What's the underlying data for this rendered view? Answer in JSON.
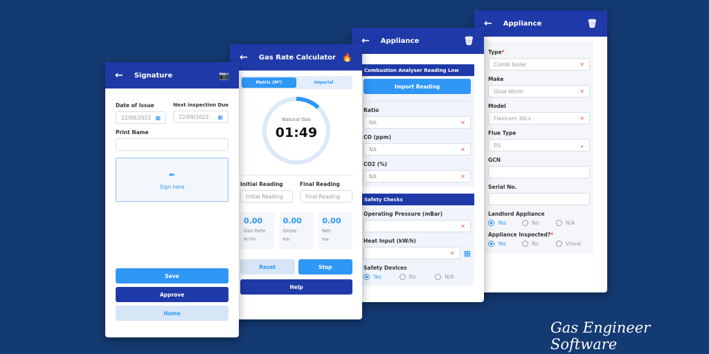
{
  "brand": "Gas Engineer Software",
  "signature": {
    "title": "Signature",
    "date_issue_label": "Date of Issue",
    "date_issue": "22/09/2022",
    "next_due_label": "Next inspection Due",
    "next_due": "22/09/2023",
    "print_name_label": "Print Name",
    "print_name": "",
    "sign_here": "Sign here",
    "save": "Save",
    "approve": "Approve",
    "home": "Home"
  },
  "gas": {
    "title": "Gas Rate Calculator",
    "tabs": [
      "Metric (M³)",
      "Imperial"
    ],
    "gas_type": "Natural Gas",
    "timer": "01:49",
    "timer_progress": 0.12,
    "initial_label": "Initial Reading",
    "initial_placeholder": "Initial Reading",
    "final_label": "Final Reading",
    "final_placeholder": "Final Reading",
    "stats": [
      {
        "value": "0.00",
        "label": "Gas Rate",
        "unit": "M³/Hr"
      },
      {
        "value": "0.00",
        "label": "Gross",
        "unit": "Kw"
      },
      {
        "value": "0.00",
        "label": "Net",
        "unit": "Kw"
      }
    ],
    "reset": "Reset",
    "stop": "Stop",
    "help": "Help"
  },
  "combustion": {
    "title": "Appliance",
    "section1": "Combustion Analyser Reading Low",
    "import": "Import Reading",
    "fields": [
      {
        "label": "Ratio",
        "value": "NA"
      },
      {
        "label": "CO (ppm)",
        "value": "NA"
      },
      {
        "label": "CO2 (%)",
        "value": "NA"
      }
    ],
    "section2": "Safety Checks",
    "pressure_label": "Operating Pressure (mBar)",
    "heat_label": "Heat Input (kW/h)",
    "devices_label": "Safety Devices",
    "devices_options": [
      "Yes",
      "No",
      "N/A"
    ]
  },
  "appliance": {
    "title": "Appliance",
    "type_label": "Type",
    "type": "Combi boiler",
    "make_label": "Make",
    "make": "Glow Worm",
    "model_label": "Model",
    "model": "Flexicom 30cx",
    "flue_label": "Flue Type",
    "flue": "RS",
    "gcn_label": "GCN",
    "serial_label": "Serial No.",
    "landlord_label": "Landlord Appliance",
    "landlord_options": [
      "Yes",
      "No",
      "N/A"
    ],
    "inspected_label": "Appliance Inspected?",
    "inspected_options": [
      "Yes",
      "No",
      "Visual"
    ],
    "required_mark": "*"
  },
  "colors": {
    "primary": "#1f3aa8",
    "accent": "#2f97f5",
    "background": "#143a72",
    "danger": "#ee5a4f"
  }
}
